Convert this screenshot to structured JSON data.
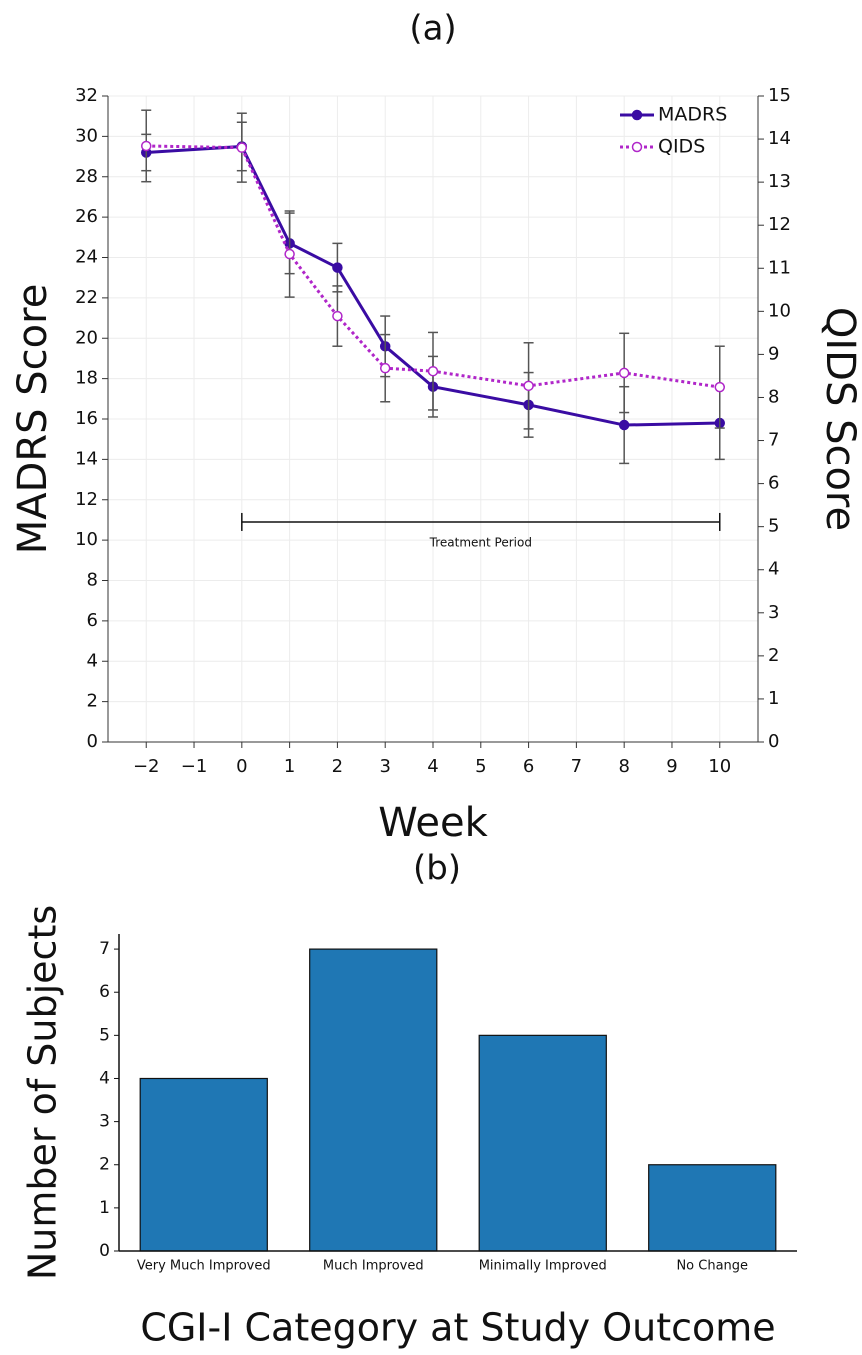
{
  "chart_data": [
    {
      "type": "line",
      "title": "(a)",
      "xlabel": "Week",
      "ylabel": "MADRS Score",
      "y2label": "QIDS Score",
      "x": [
        -2,
        0,
        1,
        2,
        3,
        4,
        6,
        8,
        10
      ],
      "series": [
        {
          "name": "MADRS",
          "color": "#3a0ca3",
          "line_style": "solid",
          "marker_fill": true,
          "axis": "y",
          "values": [
            29.2,
            29.5,
            24.7,
            23.5,
            19.6,
            17.6,
            16.7,
            15.7,
            15.8
          ],
          "errors": [
            0.9,
            1.2,
            1.5,
            1.2,
            1.5,
            1.5,
            1.6,
            1.9,
            1.8
          ]
        },
        {
          "name": "QIDS",
          "color": "#b026c9",
          "line_style": "dotted",
          "marker_fill": false,
          "axis": "y2",
          "values": [
            13.84,
            13.8,
            11.33,
            9.89,
            8.68,
            8.61,
            8.27,
            8.57,
            8.24
          ],
          "errors": [
            0.83,
            0.8,
            1.0,
            0.7,
            0.78,
            0.9,
            1.0,
            0.92,
            0.95
          ]
        }
      ],
      "xlim": [
        -2.8,
        10.8
      ],
      "xticks": [
        {
          "value": -2,
          "label": "−2"
        },
        {
          "value": -1,
          "label": "−1"
        },
        0,
        1,
        2,
        3,
        4,
        5,
        6,
        7,
        8,
        9,
        10
      ],
      "ylim": [
        0,
        32
      ],
      "yticks": [
        0,
        2,
        4,
        6,
        8,
        10,
        12,
        14,
        16,
        18,
        20,
        22,
        24,
        26,
        28,
        30,
        32
      ],
      "y2lim": [
        0,
        15
      ],
      "y2ticks": [
        0,
        1,
        2,
        3,
        4,
        5,
        6,
        7,
        8,
        9,
        10,
        11,
        12,
        13,
        14,
        15
      ],
      "grid": true,
      "legend": "upper right",
      "error_color": "#555555",
      "annotation": {
        "text": "Treatment Period",
        "x": [
          0,
          10
        ],
        "y": 10.9
      }
    },
    {
      "type": "bar",
      "title": "(b)",
      "xlabel": "CGI-I Category at Study Outcome",
      "ylabel": "Number of Subjects",
      "categories": [
        "Very Much Improved",
        "Much Improved",
        "Minimally Improved",
        "No Change"
      ],
      "values": [
        4,
        7,
        5,
        2
      ],
      "color": "#1f77b4",
      "ylim": [
        0,
        7.35
      ],
      "yticks": [
        0,
        1,
        2,
        3,
        4,
        5,
        6,
        7
      ],
      "grid": false
    }
  ]
}
